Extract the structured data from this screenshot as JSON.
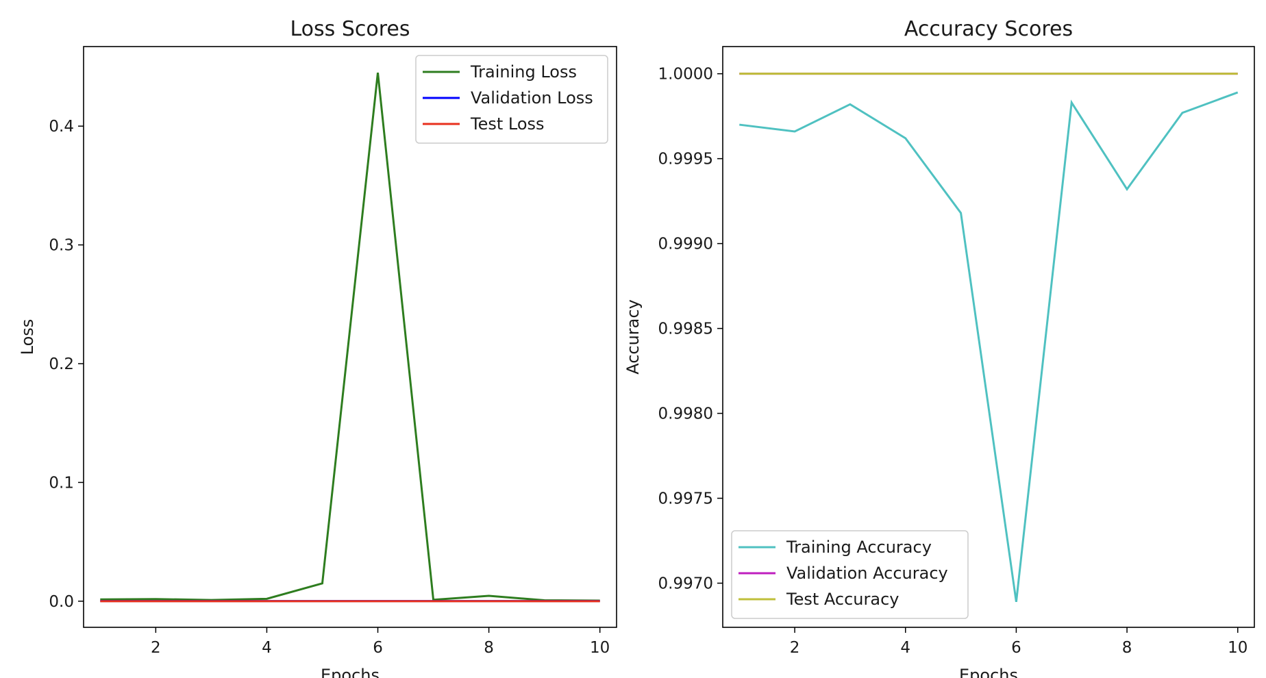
{
  "chart_data": [
    {
      "type": "line",
      "title": "Loss Scores",
      "xlabel": "Epochs",
      "ylabel": "Loss",
      "xlim": [
        0.7,
        10.3
      ],
      "ylim": [
        -0.022,
        0.467
      ],
      "xticks": [
        2,
        4,
        6,
        8,
        10
      ],
      "xtick_labels": [
        "2",
        "4",
        "6",
        "8",
        "10"
      ],
      "yticks": [
        0.0,
        0.1,
        0.2,
        0.3,
        0.4
      ],
      "ytick_labels": [
        "0.0",
        "0.1",
        "0.2",
        "0.3",
        "0.4"
      ],
      "grid": false,
      "legend_position": "upper right",
      "x": [
        1,
        2,
        3,
        4,
        5,
        6,
        7,
        8,
        9,
        10
      ],
      "series": [
        {
          "name": "Training Loss",
          "color": "#2e7d1f",
          "values": [
            0.0015,
            0.0018,
            0.001,
            0.002,
            0.015,
            0.445,
            0.0012,
            0.0045,
            0.0008,
            0.0005
          ]
        },
        {
          "name": "Validation Loss",
          "color": "#0000ff",
          "values": [
            0.0001,
            0.0001,
            0.0001,
            0.0001,
            0.0001,
            0.0001,
            0.0001,
            0.0001,
            0.0001,
            0.0001
          ]
        },
        {
          "name": "Test Loss",
          "color": "#e8301e",
          "values": [
            0.0,
            0.0,
            0.0,
            0.0,
            0.0,
            0.0,
            0.0,
            0.0,
            0.0,
            0.0
          ]
        }
      ]
    },
    {
      "type": "line",
      "title": "Accuracy Scores",
      "xlabel": "Epochs",
      "ylabel": "Accuracy",
      "xlim": [
        0.7,
        10.3
      ],
      "ylim": [
        0.99674,
        1.00016
      ],
      "xticks": [
        2,
        4,
        6,
        8,
        10
      ],
      "xtick_labels": [
        "2",
        "4",
        "6",
        "8",
        "10"
      ],
      "yticks": [
        0.997,
        0.9975,
        0.998,
        0.9985,
        0.999,
        0.9995,
        1.0
      ],
      "ytick_labels": [
        "0.9970",
        "0.9975",
        "0.9980",
        "0.9985",
        "0.9990",
        "0.9995",
        "1.0000"
      ],
      "grid": false,
      "legend_position": "lower left",
      "x": [
        1,
        2,
        3,
        4,
        5,
        6,
        7,
        8,
        9,
        10
      ],
      "series": [
        {
          "name": "Training Accuracy",
          "color": "#4fc1c1",
          "values": [
            0.9997,
            0.99966,
            0.99982,
            0.99962,
            0.99918,
            0.99689,
            0.99983,
            0.99932,
            0.99977,
            0.99989
          ]
        },
        {
          "name": "Validation Accuracy",
          "color": "#bf1fbf",
          "values": [
            1.0,
            1.0,
            1.0,
            1.0,
            1.0,
            1.0,
            1.0,
            1.0,
            1.0,
            1.0
          ]
        },
        {
          "name": "Test Accuracy",
          "color": "#bfbf3a",
          "values": [
            1.0,
            1.0,
            1.0,
            1.0,
            1.0,
            1.0,
            1.0,
            1.0,
            1.0,
            1.0
          ]
        }
      ]
    }
  ]
}
